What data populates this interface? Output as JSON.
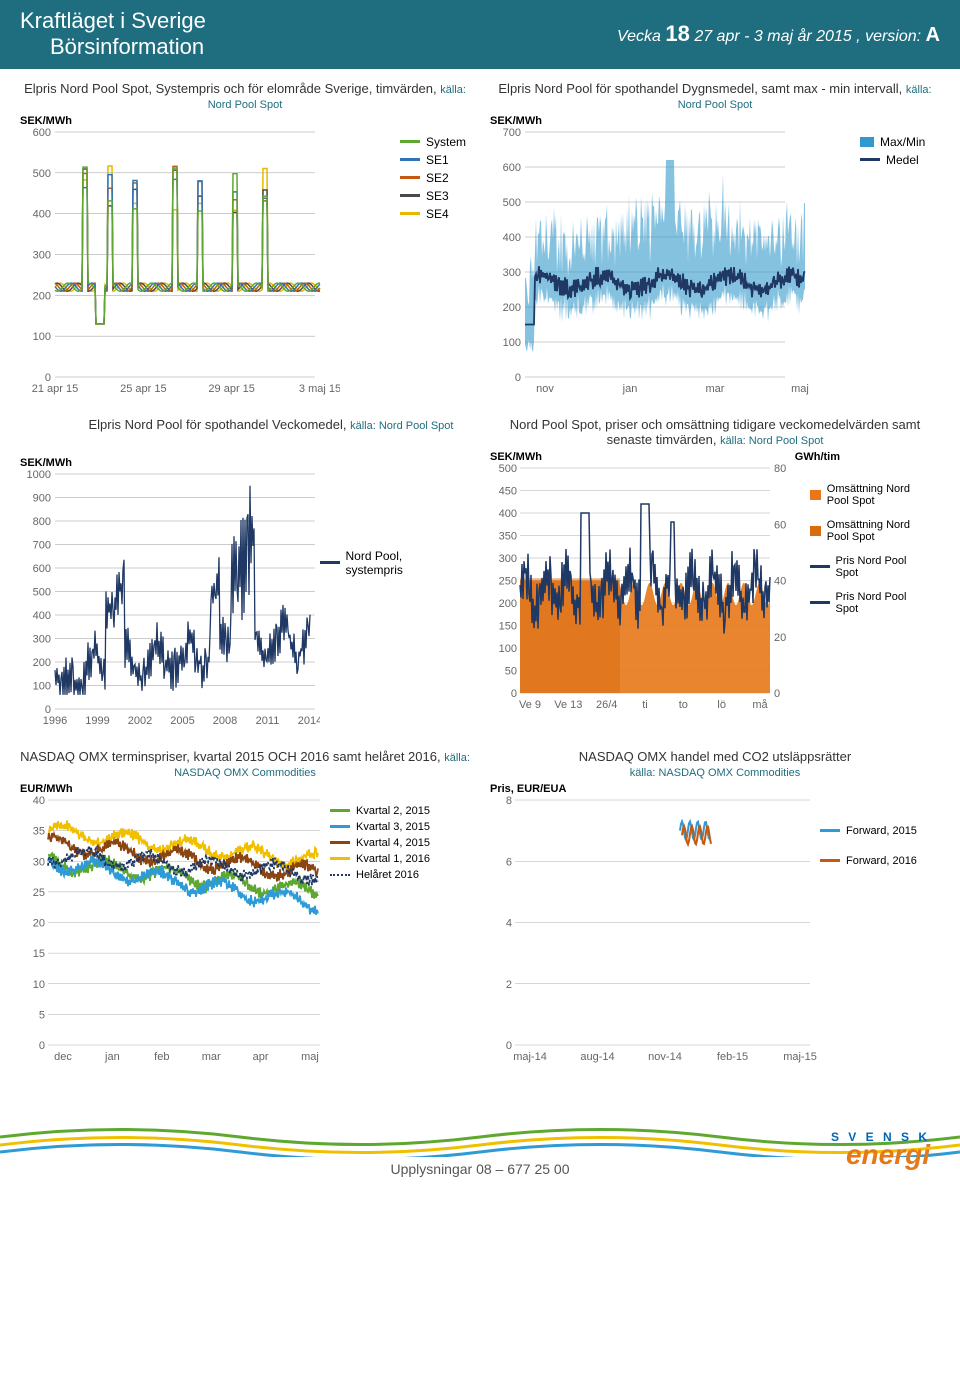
{
  "header": {
    "title1": "Kraftläget i Sverige",
    "title2": "Börsinformation",
    "week_label": "Vecka",
    "week_num": "18",
    "date_range": "27 apr - 3 maj år 2015 , version:",
    "version": "A"
  },
  "colors": {
    "header_bg": "#1e6e7f",
    "grid": "#999999",
    "system": "#5ea82f",
    "se1": "#2e75b6",
    "se2": "#c65911",
    "se3": "#4a4a4a",
    "se4": "#e6b800",
    "maxmin": "#3399cc",
    "medel": "#1f3864",
    "nordpool_line": "#1f3864",
    "omsattning1": "#e67817",
    "omsattning2": "#d96c0f",
    "pris_line": "#1f3864",
    "k2_2015": "#5ea82f",
    "k3_2015": "#2e9bd6",
    "k4_2015": "#8b4513",
    "k1_2016": "#f0c000",
    "helar_2016": "#1f3864",
    "fwd2015": "#2e9bd6",
    "fwd2016": "#c65911"
  },
  "chart1": {
    "title": "Elpris Nord Pool Spot, Systempris och för elområde Sverige, timvärden,",
    "source": "källa: Nord Pool Spot",
    "ylabel": "SEK/MWh",
    "ylim": [
      0,
      600
    ],
    "ytick_step": 100,
    "xticks": [
      "21 apr 15",
      "25 apr 15",
      "29 apr 15",
      "3 maj 15"
    ],
    "legend": [
      "System",
      "SE1",
      "SE2",
      "SE3",
      "SE4"
    ]
  },
  "chart2": {
    "title": "Elpris Nord Pool för spothandel Dygnsmedel, samt max - min intervall,",
    "source": "källa: Nord Pool Spot",
    "ylabel": "SEK/MWh",
    "ylim": [
      0,
      700
    ],
    "ytick_step": 100,
    "xticks": [
      "nov",
      "jan",
      "mar",
      "maj"
    ],
    "legend": [
      "Max/Min",
      "Medel"
    ]
  },
  "chart3": {
    "title": "Elpris Nord Pool för spothandel Veckomedel,",
    "source": "källa: Nord Pool Spot",
    "ylabel": "SEK/MWh",
    "ylim": [
      0,
      1000
    ],
    "ytick_step": 100,
    "xticks": [
      "1996",
      "1999",
      "2002",
      "2005",
      "2008",
      "2011",
      "2014"
    ],
    "legend": [
      "Nord Pool, systempris"
    ]
  },
  "chart4": {
    "title": "Nord Pool Spot, priser och omsättning tidigare veckomedelvärden samt senaste timvärden,",
    "source": "källa: Nord Pool Spot",
    "ylabel": "SEK/MWh",
    "y2label": "GWh/tim",
    "ylim": [
      0,
      500
    ],
    "ytick_step": 50,
    "y2lim": [
      0,
      80
    ],
    "y2tick_step": 20,
    "xticks": [
      "Ve 9",
      "Ve 13",
      "26/4",
      "ti",
      "to",
      "lö",
      "må"
    ],
    "legend": [
      "Omsättning Nord Pool Spot",
      "Omsättning Nord Pool Spot",
      "Pris Nord Pool Spot",
      "Pris Nord Pool Spot"
    ]
  },
  "chart5": {
    "title": "NASDAQ OMX terminspriser, kvartal 2015 OCH 2016 samt helåret 2016,",
    "source": "källa: NASDAQ OMX Commodities",
    "ylabel": "EUR/MWh",
    "ylim": [
      0,
      40
    ],
    "ytick_step": 5,
    "xticks": [
      "dec",
      "jan",
      "feb",
      "mar",
      "apr",
      "maj"
    ],
    "legend": [
      "Kvartal 2, 2015",
      "Kvartal 3, 2015",
      "Kvartal 4, 2015",
      "Kvartal 1, 2016",
      "Helåret 2016"
    ]
  },
  "chart6": {
    "title": "NASDAQ OMX handel med CO2 utsläppsrätter",
    "source": "källa: NASDAQ OMX Commodities",
    "ylabel": "Pris, EUR/EUA",
    "ylim": [
      0,
      8
    ],
    "ytick_step": 2,
    "xticks": [
      "maj-14",
      "aug-14",
      "nov-14",
      "feb-15",
      "maj-15"
    ],
    "legend": [
      "Forward, 2015",
      "Forward, 2016"
    ]
  },
  "footer": {
    "text": "Upplysningar 08 – 677 25 00",
    "logo_top": "S V E N S K",
    "logo_bot": "energi"
  }
}
